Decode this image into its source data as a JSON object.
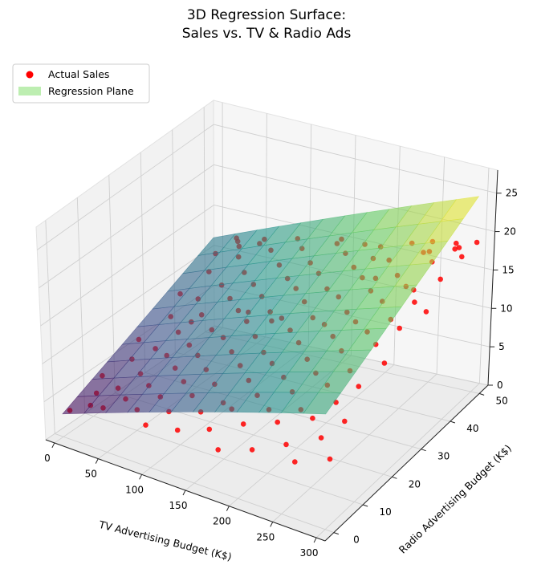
{
  "chart_data": {
    "type": "scatter",
    "title": "3D Regression Surface:\nSales vs. TV & Radio Ads",
    "xlabel": "TV Advertising Budget (K$)",
    "ylabel": "Radio Advertising Budget (K$)",
    "zlabel": "",
    "xlim": [
      -10,
      310
    ],
    "ylim": [
      -3,
      53
    ],
    "zlim": [
      0,
      28
    ],
    "xticks": [
      0,
      50,
      100,
      150,
      200,
      250,
      300
    ],
    "yticks": [
      0,
      10,
      20,
      30,
      40,
      50
    ],
    "zticks": [
      0,
      5,
      10,
      15,
      20,
      25
    ],
    "grid": true,
    "legend_position": "top-left",
    "legend": [
      {
        "label": "Actual Sales",
        "marker": "circle",
        "color": "#ff0000"
      },
      {
        "label": "Regression Plane",
        "marker": "patch",
        "color": "#bdeeb1"
      }
    ],
    "plane": {
      "intercept": 3.0,
      "tv_coef": 0.045,
      "radio_coef": 0.18,
      "x_range": [
        0,
        300
      ],
      "y_range": [
        0,
        50
      ],
      "colormap": "viridis",
      "alpha": 0.6
    },
    "series": [
      {
        "name": "Actual Sales",
        "color": "#ff0000",
        "points": [
          [
            5,
            1,
            3.4
          ],
          [
            8,
            11,
            5.3
          ],
          [
            12,
            22,
            7.1
          ],
          [
            15,
            7,
            4.4
          ],
          [
            18,
            34,
            9.8
          ],
          [
            20,
            45,
            11.9
          ],
          [
            22,
            3,
            4.2
          ],
          [
            25,
            16,
            6.7
          ],
          [
            28,
            28,
            8.9
          ],
          [
            30,
            40,
            11.3
          ],
          [
            33,
            9,
            5.2
          ],
          [
            35,
            48,
            13.0
          ],
          [
            38,
            20,
            7.4
          ],
          [
            40,
            2,
            4.9
          ],
          [
            42,
            33,
            10.2
          ],
          [
            45,
            13,
            6.4
          ],
          [
            47,
            25,
            8.4
          ],
          [
            50,
            44,
            12.6
          ],
          [
            52,
            6,
            5.4
          ],
          [
            55,
            37,
            11.2
          ],
          [
            58,
            18,
            7.8
          ],
          [
            60,
            29,
            9.9
          ],
          [
            62,
            49,
            13.7
          ],
          [
            65,
            10,
            6.5
          ],
          [
            67,
            41,
            12.0
          ],
          [
            70,
            22,
            8.4
          ],
          [
            72,
            4,
            5.4
          ],
          [
            75,
            34,
            11.0
          ],
          [
            78,
            15,
            7.8
          ],
          [
            80,
            46,
            13.7
          ],
          [
            82,
            26,
            9.6
          ],
          [
            85,
            8,
            6.4
          ],
          [
            88,
            38,
            12.0
          ],
          [
            90,
            19,
            8.7
          ],
          [
            92,
            1,
            5.1
          ],
          [
            95,
            31,
            11.0
          ],
          [
            98,
            12,
            7.7
          ],
          [
            100,
            43,
            13.3
          ],
          [
            102,
            24,
            9.9
          ],
          [
            105,
            5,
            6.2
          ],
          [
            108,
            35,
            12.0
          ],
          [
            110,
            16,
            8.5
          ],
          [
            112,
            47,
            14.5
          ],
          [
            115,
            28,
            11.2
          ],
          [
            118,
            9,
            7.6
          ],
          [
            120,
            40,
            13.1
          ],
          [
            122,
            21,
            9.7
          ],
          [
            125,
            2,
            5.5
          ],
          [
            128,
            32,
            11.6
          ],
          [
            130,
            13,
            8.3
          ],
          [
            132,
            44,
            14.2
          ],
          [
            135,
            25,
            10.9
          ],
          [
            138,
            6,
            7.2
          ],
          [
            140,
            37,
            13.4
          ],
          [
            142,
            18,
            9.6
          ],
          [
            145,
            49,
            15.4
          ],
          [
            148,
            30,
            12.1
          ],
          [
            150,
            10,
            7.6
          ],
          [
            152,
            41,
            14.4
          ],
          [
            155,
            22,
            10.5
          ],
          [
            158,
            3,
            6.7
          ],
          [
            160,
            34,
            13.3
          ],
          [
            162,
            15,
            9.4
          ],
          [
            165,
            46,
            15.7
          ],
          [
            168,
            27,
            12.2
          ],
          [
            170,
            7,
            8.6
          ],
          [
            172,
            38,
            14.0
          ],
          [
            175,
            19,
            10.8
          ],
          [
            178,
            0,
            5.8
          ],
          [
            180,
            31,
            12.9
          ],
          [
            182,
            12,
            9.2
          ],
          [
            185,
            43,
            15.5
          ],
          [
            188,
            24,
            12.3
          ],
          [
            190,
            5,
            8.1
          ],
          [
            192,
            36,
            14.3
          ],
          [
            195,
            17,
            10.4
          ],
          [
            198,
            48,
            16.8
          ],
          [
            200,
            29,
            13.4
          ],
          [
            202,
            10,
            8.8
          ],
          [
            205,
            40,
            15.8
          ],
          [
            208,
            21,
            11.9
          ],
          [
            210,
            2,
            6.5
          ],
          [
            212,
            33,
            14.0
          ],
          [
            215,
            14,
            10.3
          ],
          [
            218,
            45,
            16.7
          ],
          [
            220,
            26,
            13.6
          ],
          [
            222,
            7,
            9.0
          ],
          [
            225,
            37,
            15.8
          ],
          [
            228,
            18,
            11.9
          ],
          [
            230,
            49,
            17.8
          ],
          [
            232,
            30,
            14.5
          ],
          [
            235,
            11,
            9.8
          ],
          [
            238,
            42,
            16.4
          ],
          [
            240,
            23,
            13.5
          ],
          [
            242,
            4,
            7.9
          ],
          [
            245,
            35,
            15.8
          ],
          [
            248,
            16,
            11.8
          ],
          [
            250,
            47,
            17.9
          ],
          [
            252,
            28,
            14.6
          ],
          [
            255,
            9,
            10.2
          ],
          [
            258,
            39,
            16.7
          ],
          [
            260,
            20,
            12.7
          ],
          [
            262,
            1,
            7.5
          ],
          [
            265,
            32,
            15.2
          ],
          [
            268,
            13,
            11.4
          ],
          [
            270,
            44,
            18.4
          ],
          [
            272,
            25,
            14.8
          ],
          [
            275,
            6,
            9.5
          ],
          [
            278,
            36,
            16.4
          ],
          [
            280,
            17,
            12.5
          ],
          [
            282,
            48,
            18.9
          ],
          [
            285,
            29,
            15.9
          ],
          [
            288,
            10,
            10.8
          ],
          [
            290,
            41,
            17.9
          ],
          [
            292,
            22,
            14.2
          ],
          [
            295,
            3,
            8.6
          ],
          [
            298,
            34,
            16.6
          ],
          [
            300,
            50,
            19.5
          ],
          [
            60,
            48,
            13.4
          ],
          [
            110,
            30,
            11.6
          ],
          [
            30,
            49,
            13.0
          ],
          [
            200,
            45,
            16.4
          ],
          [
            150,
            49,
            16.1
          ],
          [
            250,
            50,
            18.2
          ],
          [
            100,
            49,
            14.8
          ],
          [
            140,
            29,
            11.8
          ],
          [
            55,
            27,
            9.4
          ],
          [
            220,
            40,
            16.2
          ],
          [
            270,
            38,
            17.0
          ],
          [
            180,
            48,
            16.6
          ],
          [
            40,
            47,
            12.8
          ],
          [
            300,
            45,
            19.6
          ],
          [
            260,
            46,
            18.7
          ],
          [
            280,
            49,
            19.2
          ],
          [
            290,
            47,
            19.7
          ]
        ]
      }
    ]
  }
}
